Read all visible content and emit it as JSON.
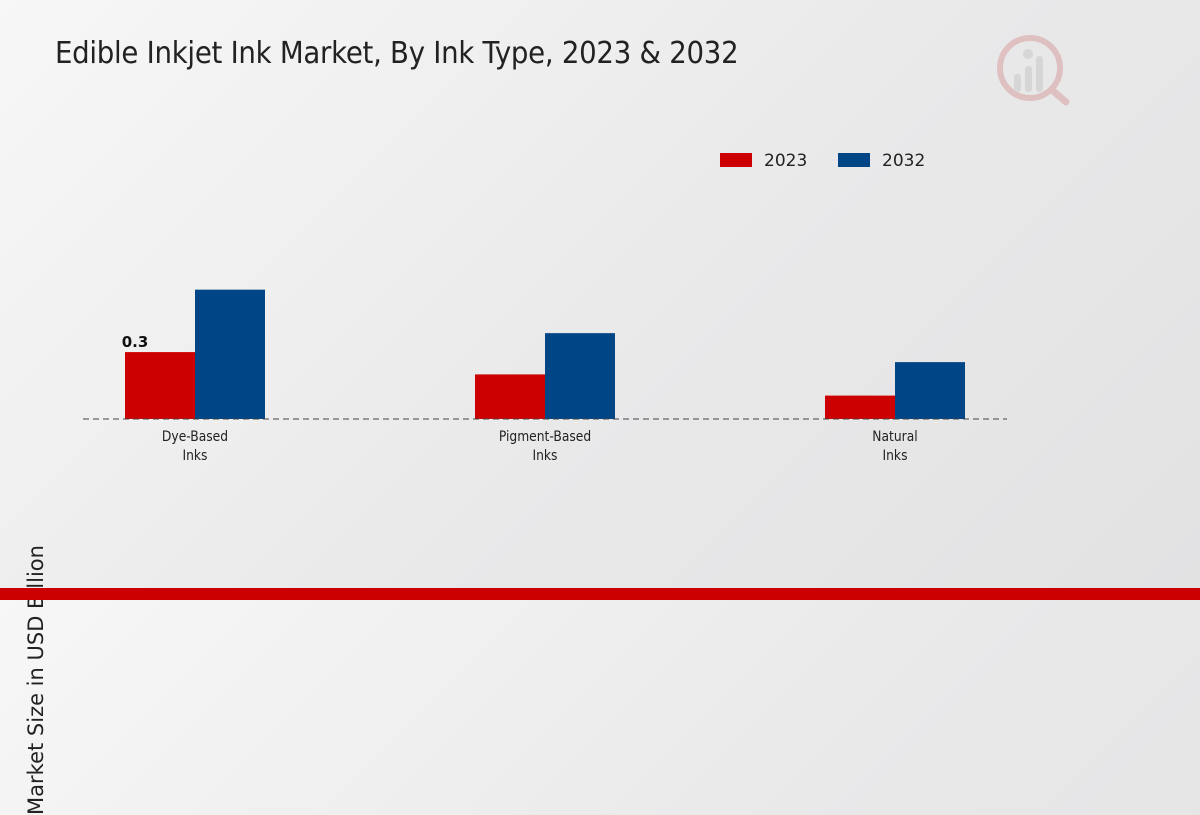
{
  "chart_data": {
    "type": "bar",
    "title": "Edible Inkjet Ink Market, By Ink Type, 2023 & 2032",
    "ylabel": "Market Size in USD Billion",
    "xlabel": "",
    "categories": [
      "Dye-Based Inks",
      "Pigment-Based Inks",
      "Natural Inks"
    ],
    "category_lines": [
      [
        "Dye-Based",
        "Inks"
      ],
      [
        "Pigment-Based",
        "Inks"
      ],
      [
        "Natural",
        "Inks"
      ]
    ],
    "series": [
      {
        "name": "2023",
        "color": "#cc0000",
        "values": [
          0.3,
          0.2,
          0.105
        ]
      },
      {
        "name": "2032",
        "color": "#004586",
        "values": [
          0.58,
          0.385,
          0.255
        ]
      }
    ],
    "data_labels": [
      {
        "series": 0,
        "index": 0,
        "text": "0.3"
      }
    ],
    "ylim": [
      0,
      1.0
    ],
    "grid": false,
    "legend": "top-right"
  },
  "colors": {
    "accent": "#cc0000",
    "secondary": "#004586"
  },
  "logo": {
    "icon": "market-research-logo-icon"
  }
}
